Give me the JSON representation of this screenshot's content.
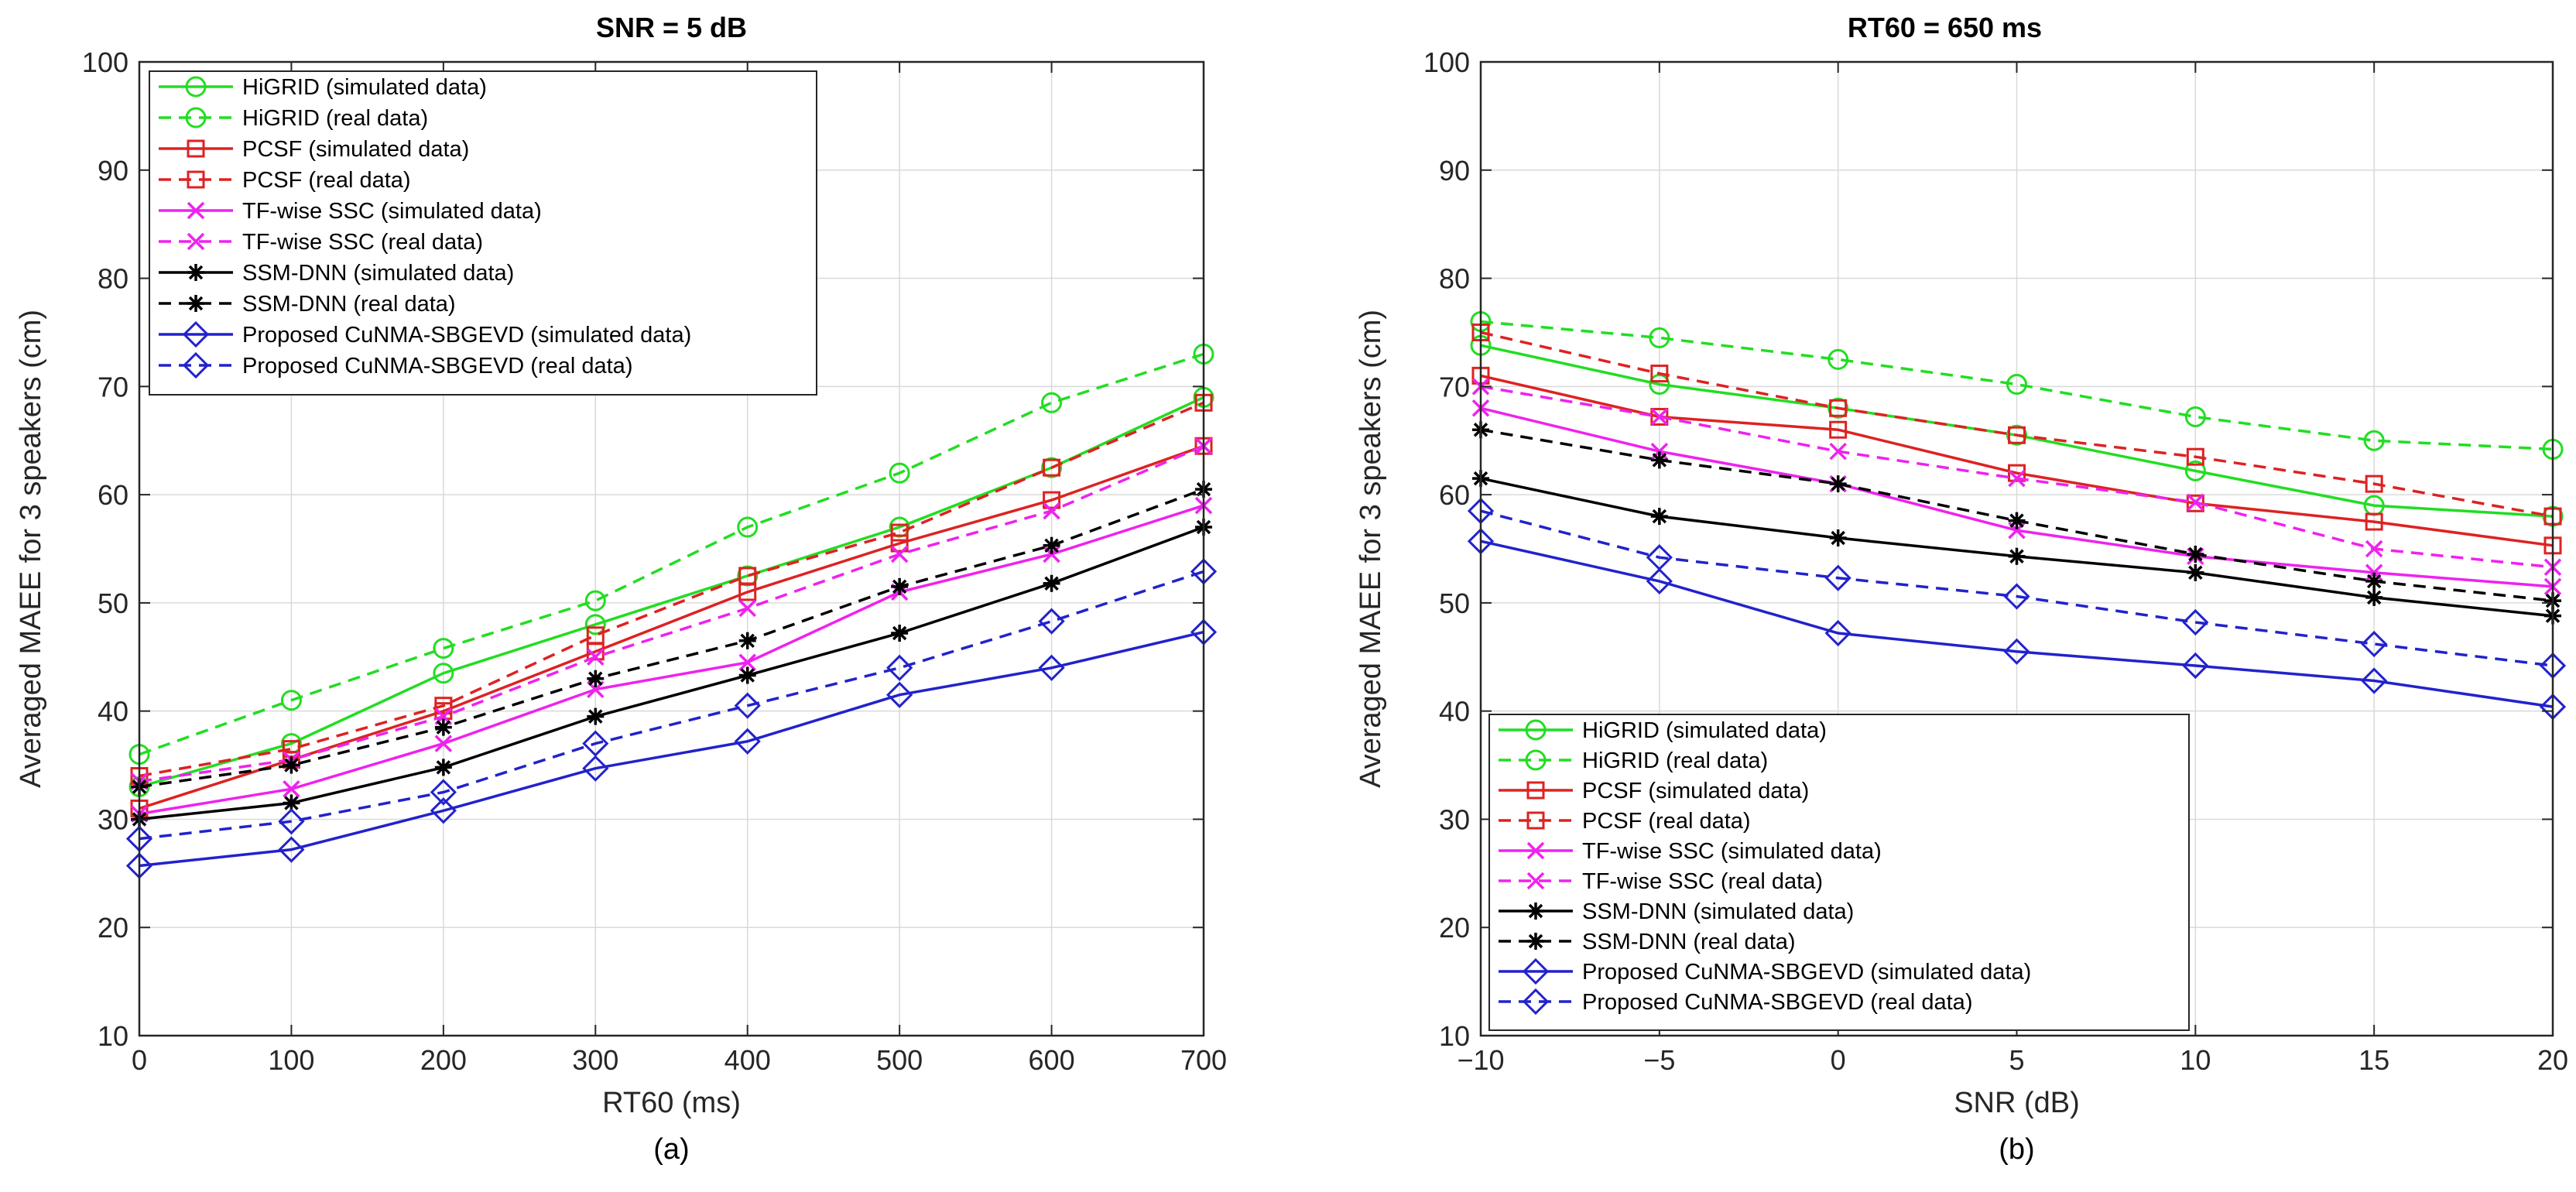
{
  "chart_data": [
    {
      "type": "line",
      "title": "SNR = 5 dB",
      "xlabel": "RT60 (ms)",
      "ylabel": "Averaged MAEE for 3 speakers (cm)",
      "caption": "(a)",
      "x": [
        0,
        100,
        200,
        300,
        400,
        500,
        600,
        700
      ],
      "xlim": [
        0,
        700
      ],
      "ylim": [
        10,
        100
      ],
      "xticks": [
        0,
        100,
        200,
        300,
        400,
        500,
        600,
        700
      ],
      "xtick_labels": [
        "0",
        "100",
        "200",
        "300",
        "400",
        "500",
        "600",
        "700"
      ],
      "yticks": [
        10,
        20,
        30,
        40,
        50,
        60,
        70,
        80,
        90,
        100
      ],
      "ytick_labels": [
        "10",
        "20",
        "30",
        "40",
        "50",
        "60",
        "70",
        "80",
        "90",
        "100"
      ],
      "grid": true,
      "legend_position": "top-left",
      "series": [
        {
          "name": "HiGRID (simulated data)",
          "color": "#22dd22",
          "dash": "solid",
          "marker": "circle",
          "values": [
            33.0,
            37.0,
            43.5,
            48.0,
            52.5,
            57.0,
            62.5,
            69.0
          ]
        },
        {
          "name": "HiGRID (real data)",
          "color": "#22dd22",
          "dash": "dashed",
          "marker": "circle",
          "values": [
            36.0,
            41.0,
            45.8,
            50.2,
            57.0,
            62.0,
            68.5,
            73.0
          ]
        },
        {
          "name": "PCSF (simulated data)",
          "color": "#dd2222",
          "dash": "solid",
          "marker": "square",
          "values": [
            31.0,
            35.5,
            40.0,
            45.5,
            51.0,
            55.5,
            59.5,
            64.5
          ]
        },
        {
          "name": "PCSF (real data)",
          "color": "#dd2222",
          "dash": "dashed",
          "marker": "square",
          "values": [
            34.0,
            36.5,
            40.5,
            47.0,
            52.5,
            56.5,
            62.5,
            68.5
          ]
        },
        {
          "name": "TF-wise SSC (simulated data)",
          "color": "#ee22ee",
          "dash": "solid",
          "marker": "x",
          "values": [
            30.5,
            32.8,
            37.0,
            42.0,
            44.5,
            51.0,
            54.5,
            59.0
          ]
        },
        {
          "name": "TF-wise SSC (real data)",
          "color": "#ee22ee",
          "dash": "dashed",
          "marker": "x",
          "values": [
            33.5,
            35.5,
            39.5,
            45.0,
            49.5,
            54.5,
            58.5,
            64.5
          ]
        },
        {
          "name": "SSM-DNN (simulated data)",
          "color": "#000000",
          "dash": "solid",
          "marker": "star",
          "values": [
            30.0,
            31.5,
            34.8,
            39.5,
            43.3,
            47.2,
            51.8,
            57.0
          ]
        },
        {
          "name": "SSM-DNN (real data)",
          "color": "#000000",
          "dash": "dashed",
          "marker": "star",
          "values": [
            33.0,
            35.0,
            38.5,
            43.0,
            46.5,
            51.5,
            55.3,
            60.5
          ]
        },
        {
          "name": "Proposed CuNMA-SBGEVD (simulated data)",
          "color": "#2222cc",
          "dash": "solid",
          "marker": "diamond",
          "values": [
            25.7,
            27.2,
            30.8,
            34.7,
            37.2,
            41.5,
            44.0,
            47.3
          ]
        },
        {
          "name": "Proposed CuNMA-SBGEVD (real data)",
          "color": "#2222cc",
          "dash": "dashed",
          "marker": "diamond",
          "values": [
            28.2,
            29.8,
            32.5,
            37.0,
            40.5,
            44.0,
            48.3,
            52.9
          ]
        }
      ]
    },
    {
      "type": "line",
      "title": "RT60 = 650 ms",
      "xlabel": "SNR (dB)",
      "ylabel": "Averaged MAEE for 3 speakers (cm)",
      "caption": "(b)",
      "x": [
        -10,
        -5,
        0,
        5,
        10,
        15,
        20
      ],
      "xlim": [
        -10,
        20
      ],
      "ylim": [
        10,
        100
      ],
      "xticks": [
        -10,
        -5,
        0,
        5,
        10,
        15,
        20
      ],
      "xtick_labels": [
        "−10",
        "−5",
        "0",
        "5",
        "10",
        "15",
        "20"
      ],
      "yticks": [
        10,
        20,
        30,
        40,
        50,
        60,
        70,
        80,
        90,
        100
      ],
      "ytick_labels": [
        "10",
        "20",
        "30",
        "40",
        "50",
        "60",
        "70",
        "80",
        "90",
        "100"
      ],
      "grid": true,
      "legend_position": "bottom-left",
      "series": [
        {
          "name": "HiGRID (simulated data)",
          "color": "#22dd22",
          "dash": "solid",
          "marker": "circle",
          "values": [
            73.8,
            70.2,
            68.0,
            65.5,
            62.2,
            59.0,
            58.0
          ]
        },
        {
          "name": "HiGRID (real data)",
          "color": "#22dd22",
          "dash": "dashed",
          "marker": "circle",
          "values": [
            76.0,
            74.5,
            72.5,
            70.2,
            67.2,
            65.0,
            64.2
          ]
        },
        {
          "name": "PCSF (simulated data)",
          "color": "#dd2222",
          "dash": "solid",
          "marker": "square",
          "values": [
            71.0,
            67.2,
            66.0,
            62.0,
            59.2,
            57.5,
            55.3
          ]
        },
        {
          "name": "PCSF (real data)",
          "color": "#dd2222",
          "dash": "dashed",
          "marker": "square",
          "values": [
            75.0,
            71.2,
            68.0,
            65.5,
            63.5,
            61.0,
            58.0
          ]
        },
        {
          "name": "TF-wise SSC (simulated data)",
          "color": "#ee22ee",
          "dash": "solid",
          "marker": "x",
          "values": [
            68.0,
            64.0,
            61.0,
            56.7,
            54.3,
            52.8,
            51.5
          ]
        },
        {
          "name": "TF-wise SSC (real data)",
          "color": "#ee22ee",
          "dash": "dashed",
          "marker": "x",
          "values": [
            70.0,
            67.2,
            64.0,
            61.5,
            59.3,
            55.0,
            53.3
          ]
        },
        {
          "name": "SSM-DNN (simulated data)",
          "color": "#000000",
          "dash": "solid",
          "marker": "star",
          "values": [
            61.5,
            58.0,
            56.0,
            54.3,
            52.8,
            50.5,
            48.8
          ]
        },
        {
          "name": "SSM-DNN (real data)",
          "color": "#000000",
          "dash": "dashed",
          "marker": "star",
          "values": [
            66.0,
            63.2,
            61.0,
            57.6,
            54.5,
            52.0,
            50.2
          ]
        },
        {
          "name": "Proposed CuNMA-SBGEVD (simulated data)",
          "color": "#2222cc",
          "dash": "solid",
          "marker": "diamond",
          "values": [
            55.7,
            52.0,
            47.2,
            45.5,
            44.2,
            42.8,
            40.4
          ]
        },
        {
          "name": "Proposed CuNMA-SBGEVD (real data)",
          "color": "#2222cc",
          "dash": "dashed",
          "marker": "diamond",
          "values": [
            58.5,
            54.2,
            52.3,
            50.6,
            48.2,
            46.2,
            44.2
          ]
        }
      ]
    }
  ]
}
